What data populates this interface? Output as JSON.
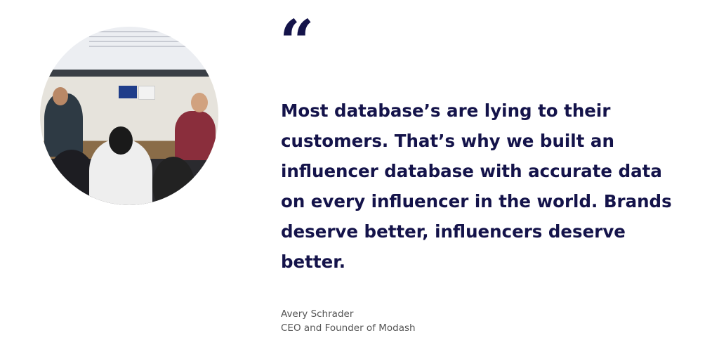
{
  "testimonial": {
    "photo_alt": "Panel discussion photo",
    "quote_icon": "quote-open-icon",
    "quote_lines": [
      "Most database’s are lying to their",
      "customers. That’s why we built an",
      "influencer database with accurate data",
      "on every influencer in the world. Brands",
      "deserve better, influencers deserve",
      "better."
    ],
    "author_name": "Avery Schrader",
    "author_title": "CEO and Founder of Modash"
  },
  "colors": {
    "text": "#14134a",
    "author": "#555555"
  }
}
